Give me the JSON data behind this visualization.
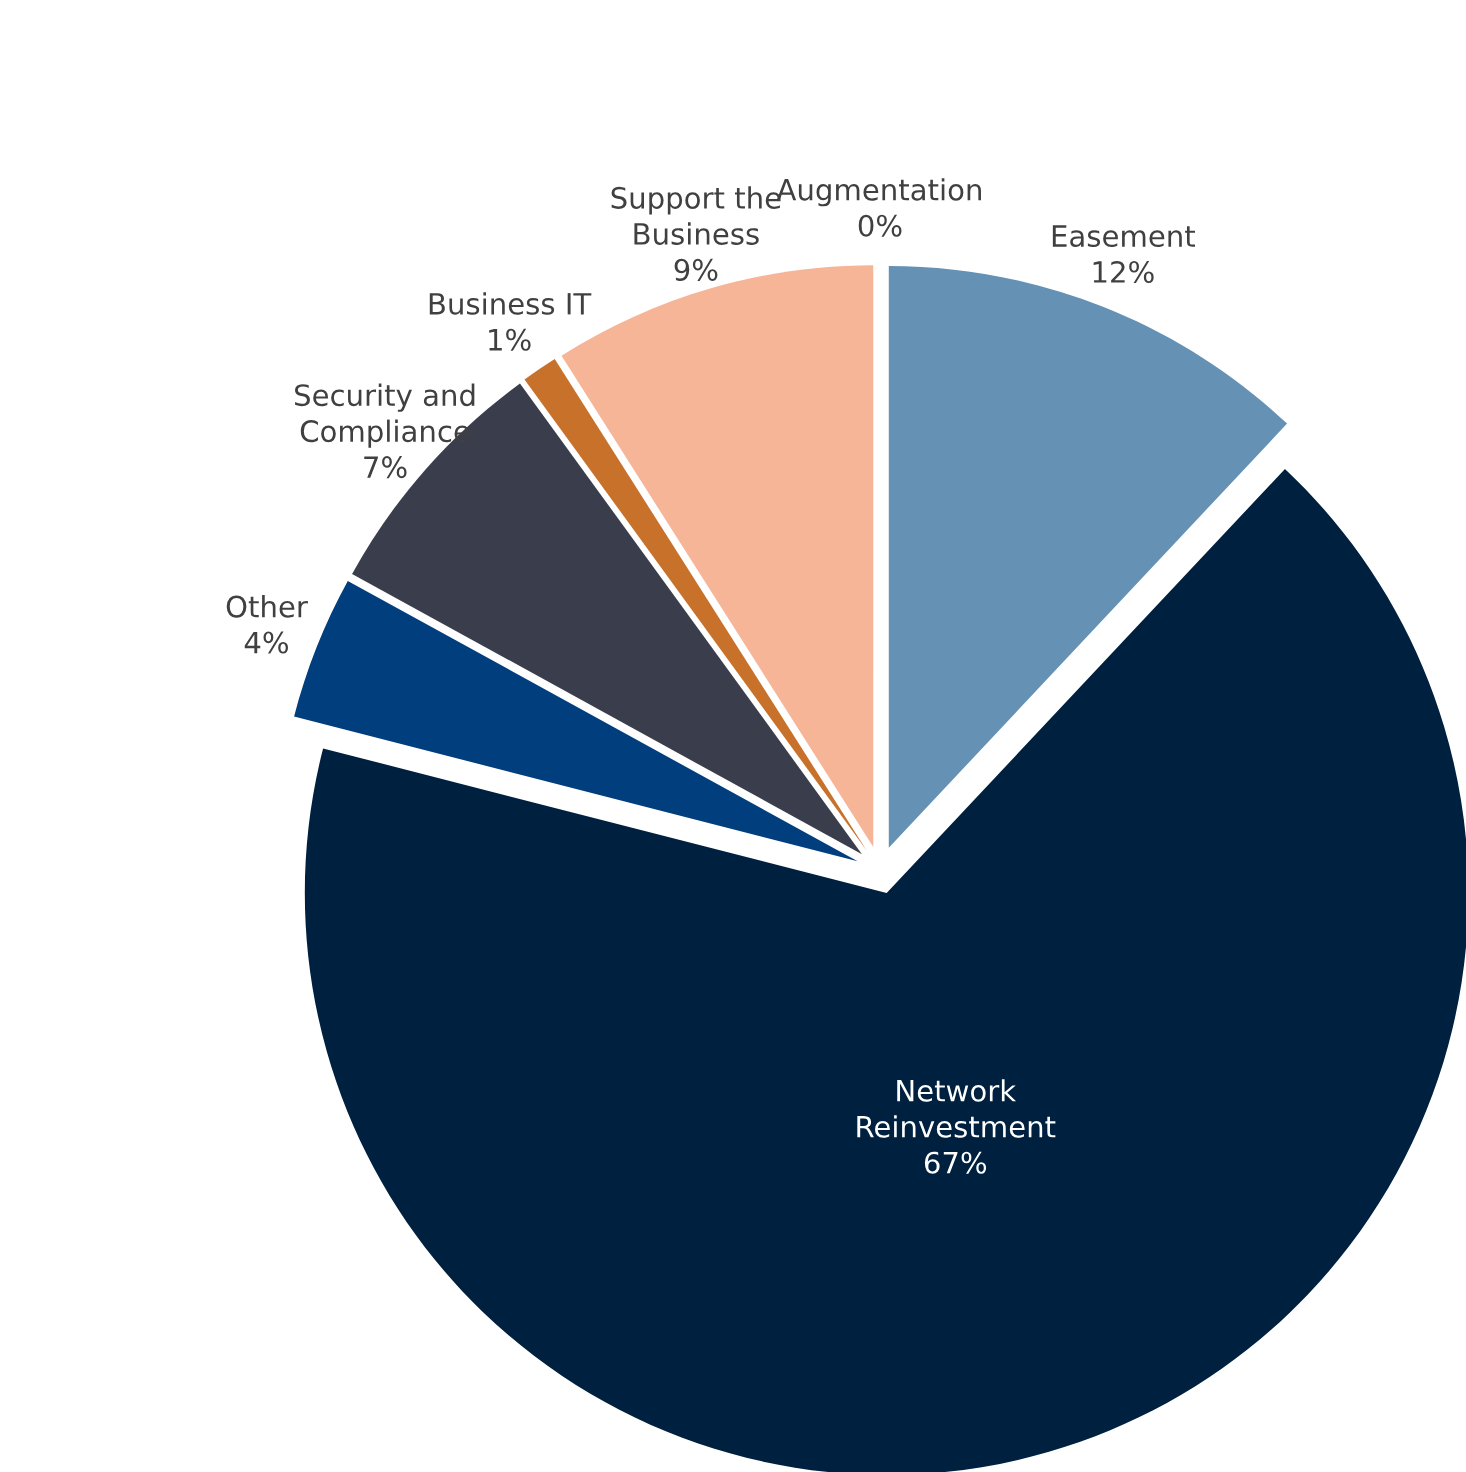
{
  "chart_data": {
    "type": "pie",
    "categories": [
      "Augmentation",
      "Easement",
      "Network Reinvestment",
      "Other",
      "Security and Compliance",
      "Business IT",
      "Support the Business"
    ],
    "values": [
      0,
      12,
      67,
      4,
      7,
      1,
      9
    ],
    "value_labels": [
      "0%",
      "12%",
      "67%",
      "4%",
      "7%",
      "1%",
      "9%"
    ],
    "colors": [
      "#ffffff",
      "#6591b5",
      "#00203f",
      "#003e7e",
      "#393d4c",
      "#c8712a",
      "#f7b598"
    ]
  }
}
